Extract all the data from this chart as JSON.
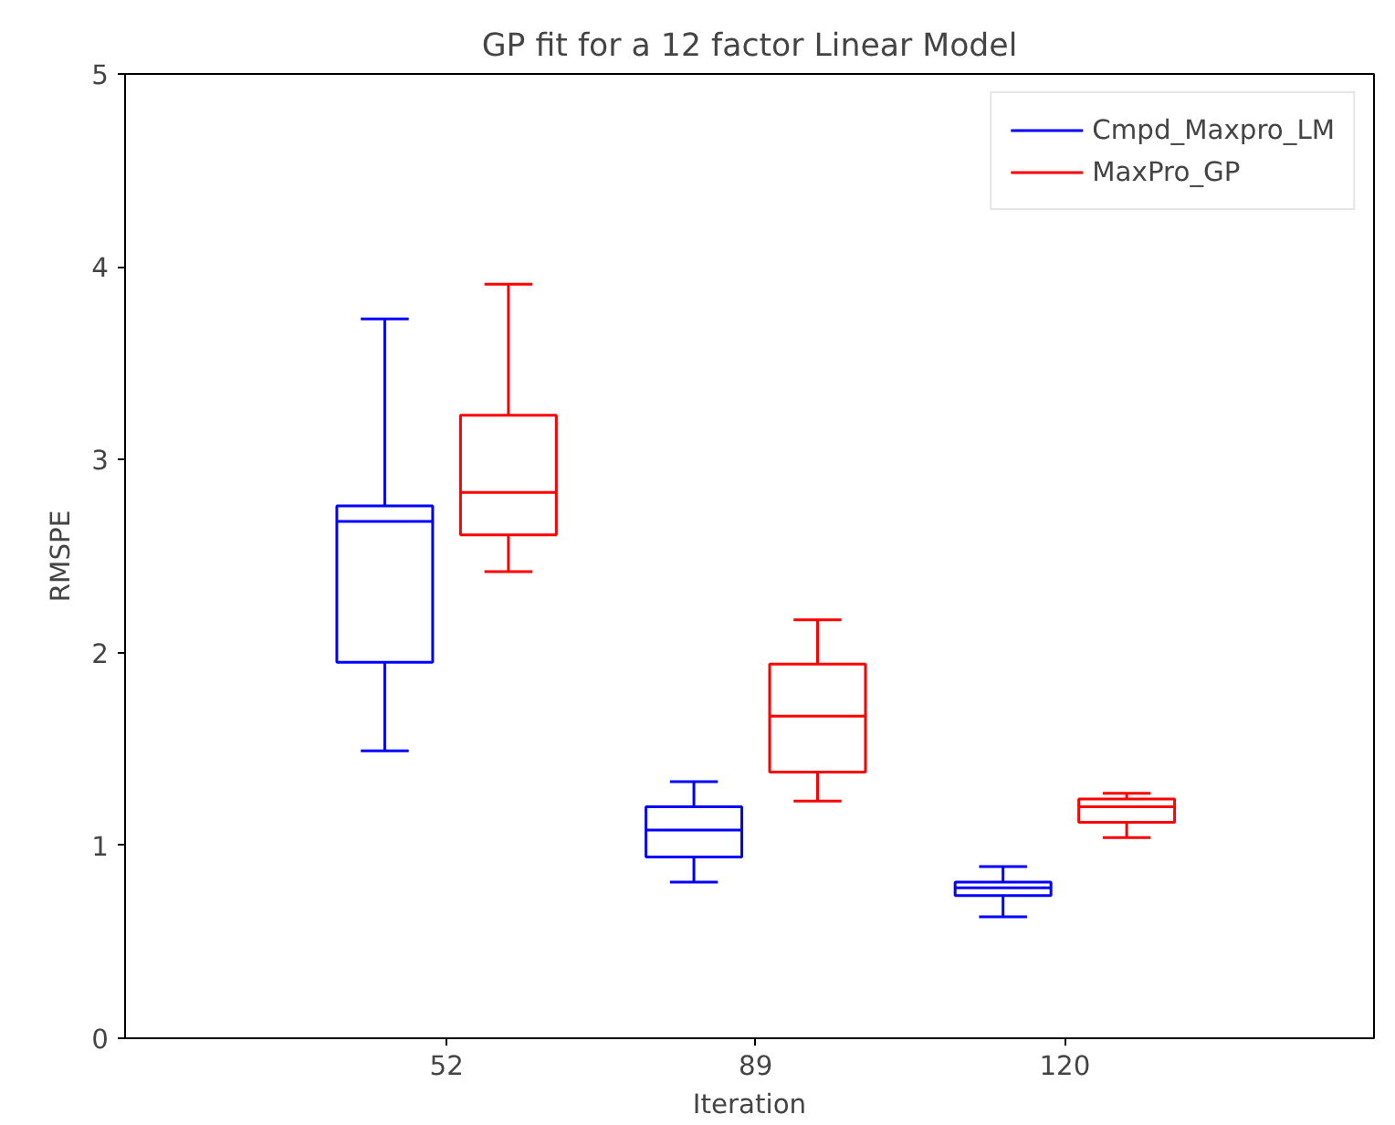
{
  "chart_data": {
    "type": "box",
    "title": "GP fit for a 12 factor Linear Model",
    "xlabel": "Iteration",
    "ylabel": "RMSPE",
    "categories": [
      "52",
      "89",
      "120"
    ],
    "ylim": [
      0,
      5
    ],
    "yticks": [
      0,
      1,
      2,
      3,
      4,
      5
    ],
    "grid": false,
    "legend": "top right",
    "series": [
      {
        "name": "Cmpd_Maxpro_LM",
        "color": "#0000ff",
        "boxes": [
          {
            "low": 1.49,
            "q1": 1.95,
            "median": 2.68,
            "q3": 2.76,
            "high": 3.73
          },
          {
            "low": 0.81,
            "q1": 0.94,
            "median": 1.08,
            "q3": 1.2,
            "high": 1.33
          },
          {
            "low": 0.63,
            "q1": 0.74,
            "median": 0.78,
            "q3": 0.81,
            "high": 0.89
          }
        ]
      },
      {
        "name": "MaxPro_GP",
        "color": "#ff0000",
        "boxes": [
          {
            "low": 2.42,
            "q1": 2.61,
            "median": 2.83,
            "q3": 3.23,
            "high": 3.91
          },
          {
            "low": 1.23,
            "q1": 1.38,
            "median": 1.67,
            "q3": 1.94,
            "high": 2.17
          },
          {
            "low": 1.04,
            "q1": 1.12,
            "median": 1.2,
            "q3": 1.24,
            "high": 1.27
          }
        ]
      }
    ]
  }
}
